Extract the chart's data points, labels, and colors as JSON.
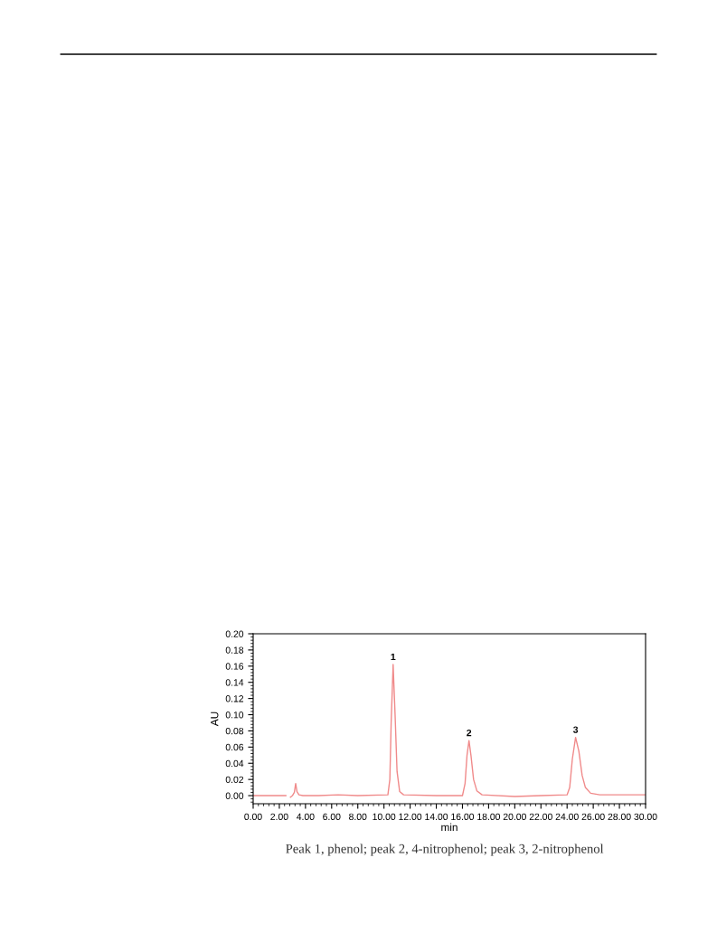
{
  "chart_data": {
    "type": "line",
    "xlabel": "min",
    "ylabel": "AU",
    "x": [
      0,
      1,
      2,
      2.5,
      2.6,
      2.75,
      2.85,
      3.0,
      3.15,
      3.25,
      3.35,
      3.5,
      3.8,
      5,
      6.5,
      8,
      10.3,
      10.45,
      10.55,
      10.7,
      10.85,
      11.0,
      11.2,
      11.5,
      14,
      16.0,
      16.2,
      16.35,
      16.5,
      16.65,
      16.85,
      17.1,
      17.5,
      20,
      22,
      24,
      24.2,
      24.4,
      24.65,
      24.9,
      25.15,
      25.4,
      25.8,
      26.5,
      28,
      30
    ],
    "series": [
      {
        "color": "#f08a8a",
        "values": [
          0,
          0,
          0,
          0,
          null,
          null,
          -0.002,
          0.0,
          0.004,
          0.015,
          0.005,
          0.001,
          0,
          0,
          0.001,
          0,
          0.001,
          0.02,
          0.09,
          0.162,
          0.1,
          0.03,
          0.005,
          0.001,
          0,
          0,
          0.015,
          0.05,
          0.068,
          0.05,
          0.02,
          0.006,
          0.001,
          -0.001,
          0,
          0.001,
          0.01,
          0.045,
          0.072,
          0.055,
          0.025,
          0.01,
          0.003,
          0.001,
          0.001,
          0.001
        ]
      }
    ],
    "xlim": [
      0,
      30
    ],
    "ylim": [
      -0.01,
      0.2
    ],
    "xticks": [
      {
        "value": 0,
        "label": "0.00"
      },
      {
        "value": 2,
        "label": "2.00"
      },
      {
        "value": 4,
        "label": "4.00"
      },
      {
        "value": 6,
        "label": "6.00"
      },
      {
        "value": 8,
        "label": "8.00"
      },
      {
        "value": 10,
        "label": "10.00"
      },
      {
        "value": 12,
        "label": "12.00"
      },
      {
        "value": 14,
        "label": "14.00"
      },
      {
        "value": 16,
        "label": "16.00"
      },
      {
        "value": 18,
        "label": "18.00"
      },
      {
        "value": 20,
        "label": "20.00"
      },
      {
        "value": 22,
        "label": "22.00"
      },
      {
        "value": 24,
        "label": "24.00"
      },
      {
        "value": 26,
        "label": "26.00"
      },
      {
        "value": 28,
        "label": "28.00"
      },
      {
        "value": 30,
        "label": "30.00"
      }
    ],
    "yticks": [
      {
        "value": 0,
        "label": "0.00"
      },
      {
        "value": 0.02,
        "label": "0.02"
      },
      {
        "value": 0.04,
        "label": "0.04"
      },
      {
        "value": 0.06,
        "label": "0.06"
      },
      {
        "value": 0.08,
        "label": "0.08"
      },
      {
        "value": 0.1,
        "label": "0.10"
      },
      {
        "value": 0.12,
        "label": "0.12"
      },
      {
        "value": 0.14,
        "label": "0.14"
      },
      {
        "value": 0.16,
        "label": "0.16"
      },
      {
        "value": 0.18,
        "label": "0.18"
      },
      {
        "value": 0.2,
        "label": "0.20"
      }
    ],
    "grid": false,
    "legend": false,
    "marker": "none",
    "line_style": "solid",
    "annotations": [
      {
        "text": "1",
        "x": 10.7,
        "y": 0.162
      },
      {
        "text": "2",
        "x": 16.5,
        "y": 0.068
      },
      {
        "text": "3",
        "x": 24.65,
        "y": 0.072
      },
      "Peak 1, phenol; peak 2, 4-nitrophenol; peak 3, 2-nitrophenol"
    ]
  }
}
